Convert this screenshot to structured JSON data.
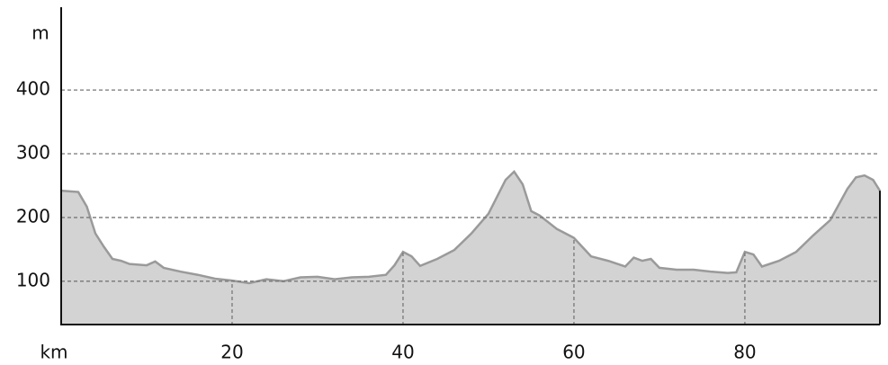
{
  "chart_data": {
    "type": "area",
    "y_label": "m",
    "x_label": "km",
    "x": [
      0,
      2,
      3,
      4,
      5,
      6,
      7,
      8,
      10,
      11,
      12,
      14,
      16,
      18,
      20,
      22,
      24,
      26,
      28,
      30,
      32,
      34,
      36,
      38,
      39,
      40,
      41,
      42,
      44,
      46,
      48,
      50,
      52,
      53,
      54,
      55,
      56,
      58,
      60,
      62,
      64,
      66,
      67,
      68,
      69,
      70,
      72,
      74,
      76,
      78,
      79,
      80,
      81,
      82,
      84,
      86,
      88,
      90,
      92,
      93,
      94,
      95,
      95.8
    ],
    "values": [
      242,
      240,
      217,
      175,
      154,
      135,
      132,
      127,
      125,
      131,
      121,
      115,
      110,
      104,
      101,
      97,
      103,
      100,
      106,
      107,
      103,
      106,
      107,
      110,
      125,
      146,
      139,
      124,
      135,
      149,
      175,
      206,
      259,
      272,
      252,
      210,
      203,
      182,
      168,
      139,
      132,
      123,
      137,
      132,
      135,
      121,
      118,
      118,
      115,
      113,
      114,
      146,
      142,
      123,
      132,
      146,
      172,
      196,
      245,
      263,
      266,
      259,
      242
    ],
    "color": "#d3d3d3",
    "line_color": "#9a9a9a",
    "xlim": [
      0,
      95.8
    ],
    "ylim": [
      32,
      530
    ],
    "xticks": [
      20,
      40,
      60,
      80
    ],
    "yticks": [
      100,
      200,
      300,
      400
    ],
    "grid": true
  }
}
